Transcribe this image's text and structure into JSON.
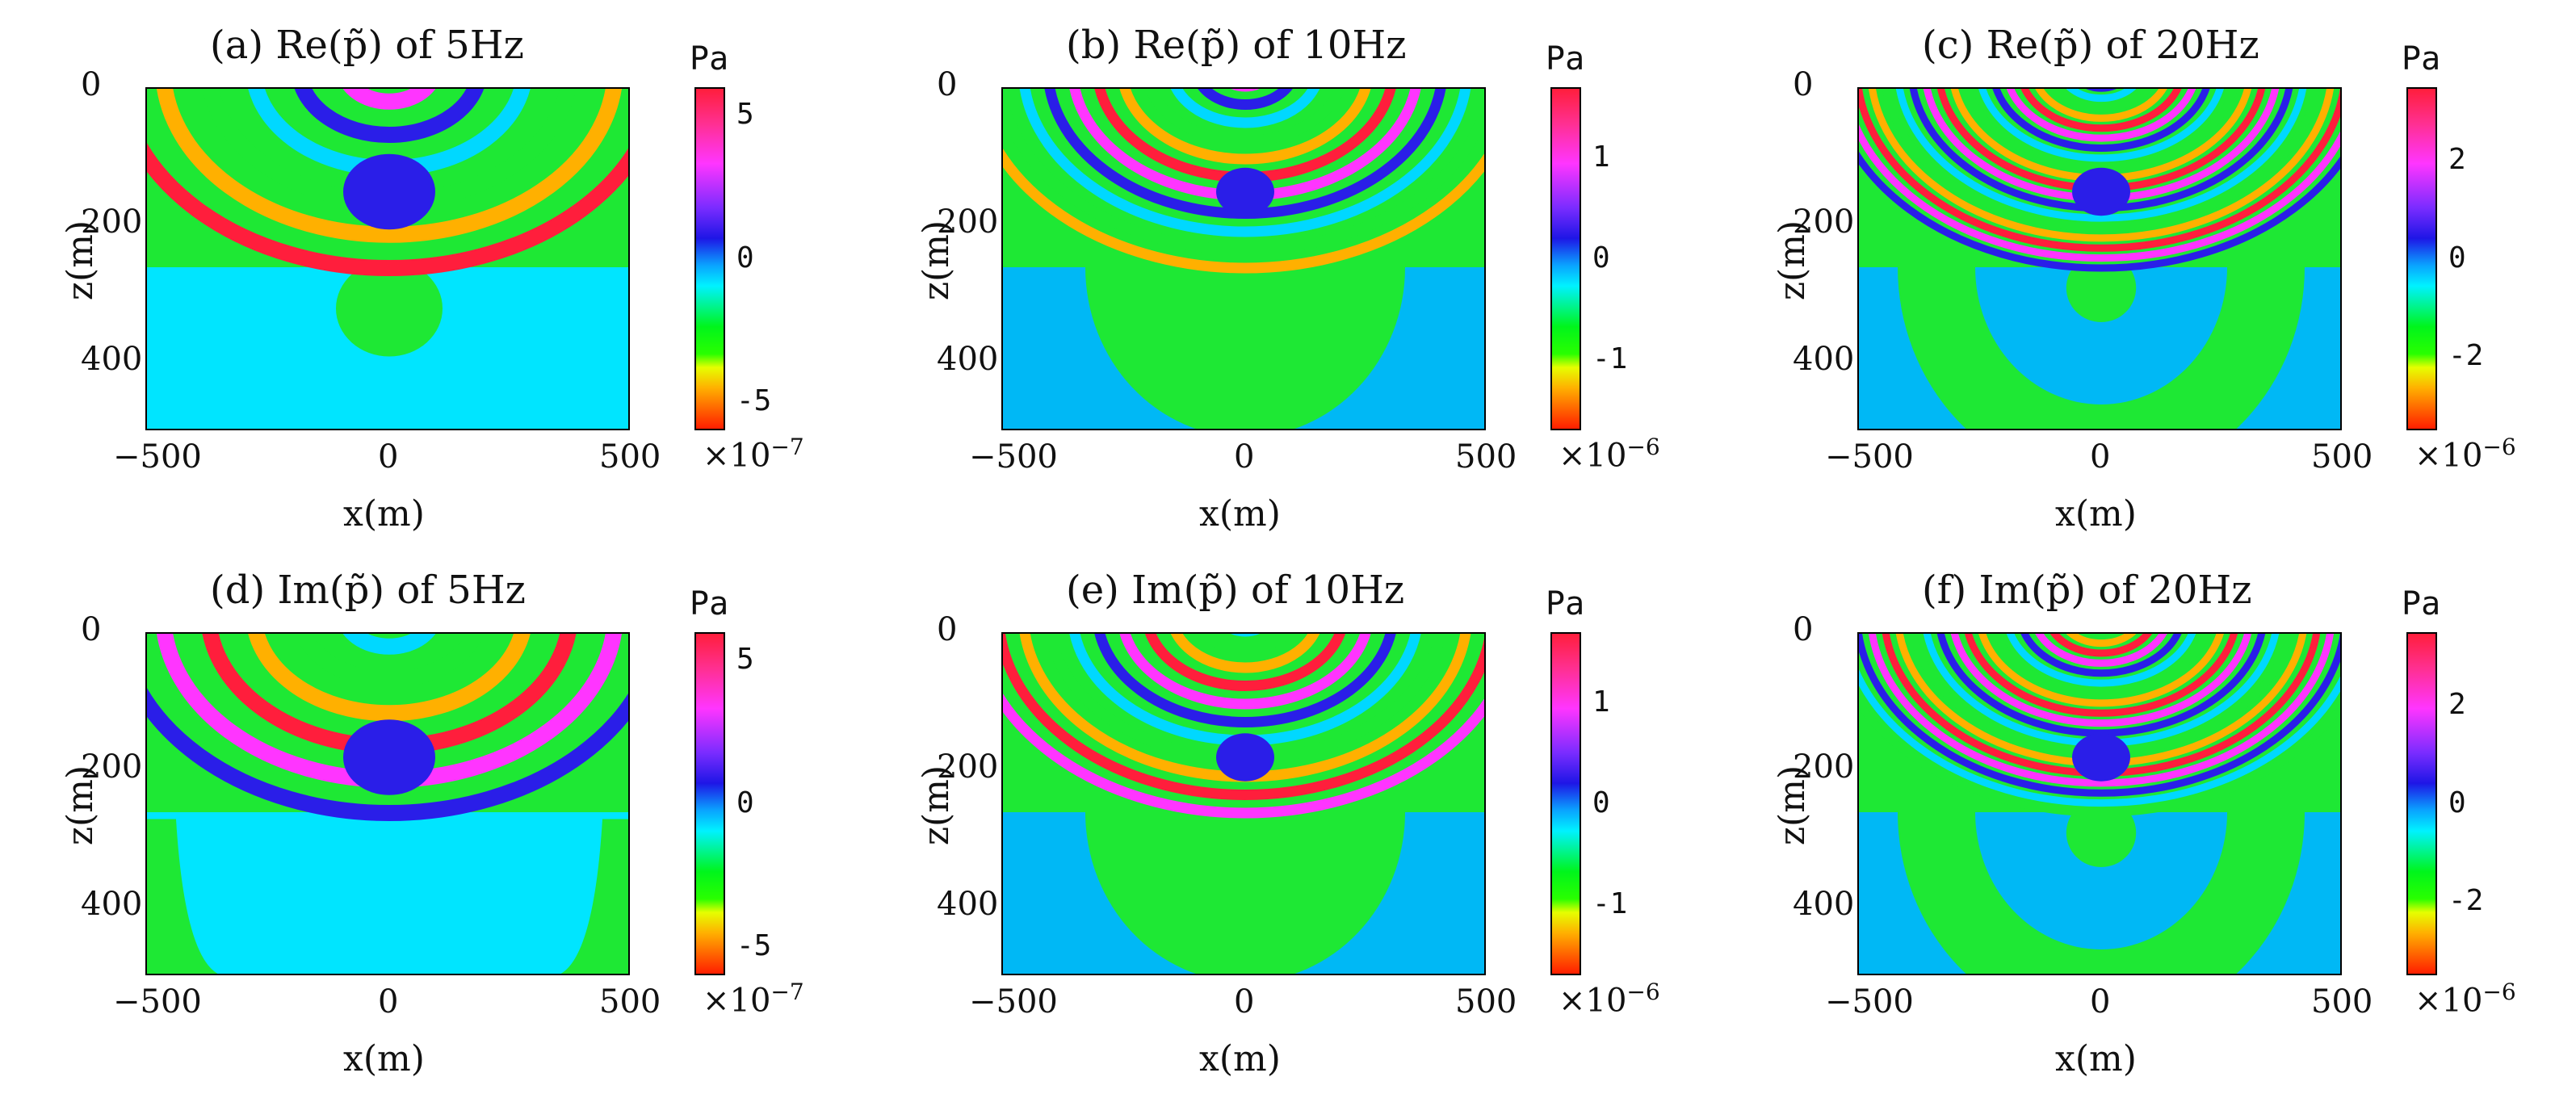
{
  "chart_data": [
    {
      "type": "heatmap",
      "panel": "a",
      "title": "(a) Re(p̃) of 5Hz",
      "quantity": "real",
      "frequency_hz": 5,
      "xlabel": "x(m)",
      "ylabel": "z(m)",
      "xlim": [
        -500,
        500
      ],
      "ylim": [
        0,
        500
      ],
      "xticks": [
        "−500",
        "0",
        "500"
      ],
      "yticks": [
        "0",
        "200",
        "400"
      ],
      "colorbar": {
        "unit": "Pa",
        "ticks": [
          "5",
          "0",
          "-5"
        ],
        "exponent_text": "×10",
        "exponent_power": "−7",
        "range": [
          -6,
          6
        ]
      }
    },
    {
      "type": "heatmap",
      "panel": "b",
      "title": "(b) Re(p̃) of 10Hz",
      "quantity": "real",
      "frequency_hz": 10,
      "xlabel": "x(m)",
      "ylabel": "z(m)",
      "xlim": [
        -500,
        500
      ],
      "ylim": [
        0,
        500
      ],
      "xticks": [
        "−500",
        "0",
        "500"
      ],
      "yticks": [
        "0",
        "200",
        "400"
      ],
      "colorbar": {
        "unit": "Pa",
        "ticks": [
          "1",
          "0",
          "-1"
        ],
        "exponent_text": "×10",
        "exponent_power": "−6",
        "range": [
          -1.7,
          1.7
        ]
      }
    },
    {
      "type": "heatmap",
      "panel": "c",
      "title": "(c) Re(p̃) of 20Hz",
      "quantity": "real",
      "frequency_hz": 20,
      "xlabel": "x(m)",
      "ylabel": "z(m)",
      "xlim": [
        -500,
        500
      ],
      "ylim": [
        0,
        500
      ],
      "xticks": [
        "−500",
        "0",
        "500"
      ],
      "yticks": [
        "0",
        "200",
        "400"
      ],
      "colorbar": {
        "unit": "Pa",
        "ticks": [
          "2",
          "0",
          "-2"
        ],
        "exponent_text": "×10",
        "exponent_power": "−6",
        "range": [
          -3.5,
          3.5
        ]
      }
    },
    {
      "type": "heatmap",
      "panel": "d",
      "title": "(d) Im(p̃) of 5Hz",
      "quantity": "imag",
      "frequency_hz": 5,
      "xlabel": "x(m)",
      "ylabel": "z(m)",
      "xlim": [
        -500,
        500
      ],
      "ylim": [
        0,
        500
      ],
      "xticks": [
        "−500",
        "0",
        "500"
      ],
      "yticks": [
        "0",
        "200",
        "400"
      ],
      "colorbar": {
        "unit": "Pa",
        "ticks": [
          "5",
          "0",
          "-5"
        ],
        "exponent_text": "×10",
        "exponent_power": "−7",
        "range": [
          -6,
          6
        ]
      }
    },
    {
      "type": "heatmap",
      "panel": "e",
      "title": "(e) Im(p̃) of 10Hz",
      "quantity": "imag",
      "frequency_hz": 10,
      "xlabel": "x(m)",
      "ylabel": "z(m)",
      "xlim": [
        -500,
        500
      ],
      "ylim": [
        0,
        500
      ],
      "xticks": [
        "−500",
        "0",
        "500"
      ],
      "yticks": [
        "0",
        "200",
        "400"
      ],
      "colorbar": {
        "unit": "Pa",
        "ticks": [
          "1",
          "0",
          "-1"
        ],
        "exponent_text": "×10",
        "exponent_power": "−6",
        "range": [
          -1.7,
          1.7
        ]
      }
    },
    {
      "type": "heatmap",
      "panel": "f",
      "title": "(f) Im(p̃) of 20Hz",
      "quantity": "imag",
      "frequency_hz": 20,
      "xlabel": "x(m)",
      "ylabel": "z(m)",
      "xlim": [
        -500,
        500
      ],
      "ylim": [
        0,
        500
      ],
      "xticks": [
        "−500",
        "0",
        "500"
      ],
      "yticks": [
        "0",
        "200",
        "400"
      ],
      "colorbar": {
        "unit": "Pa",
        "ticks": [
          "2",
          "0",
          "-2"
        ],
        "exponent_text": "×10",
        "exponent_power": "−6",
        "range": [
          -3.5,
          3.5
        ]
      }
    }
  ],
  "colors": {
    "background_cyan": "#00e5ff",
    "background_blue": "#00b8f5",
    "green": "#1ee834",
    "bands": [
      "#ff1e3c",
      "#ff35ff",
      "#2a1ee8",
      "#00d8ff",
      "#1ee834",
      "#ffb000"
    ]
  }
}
